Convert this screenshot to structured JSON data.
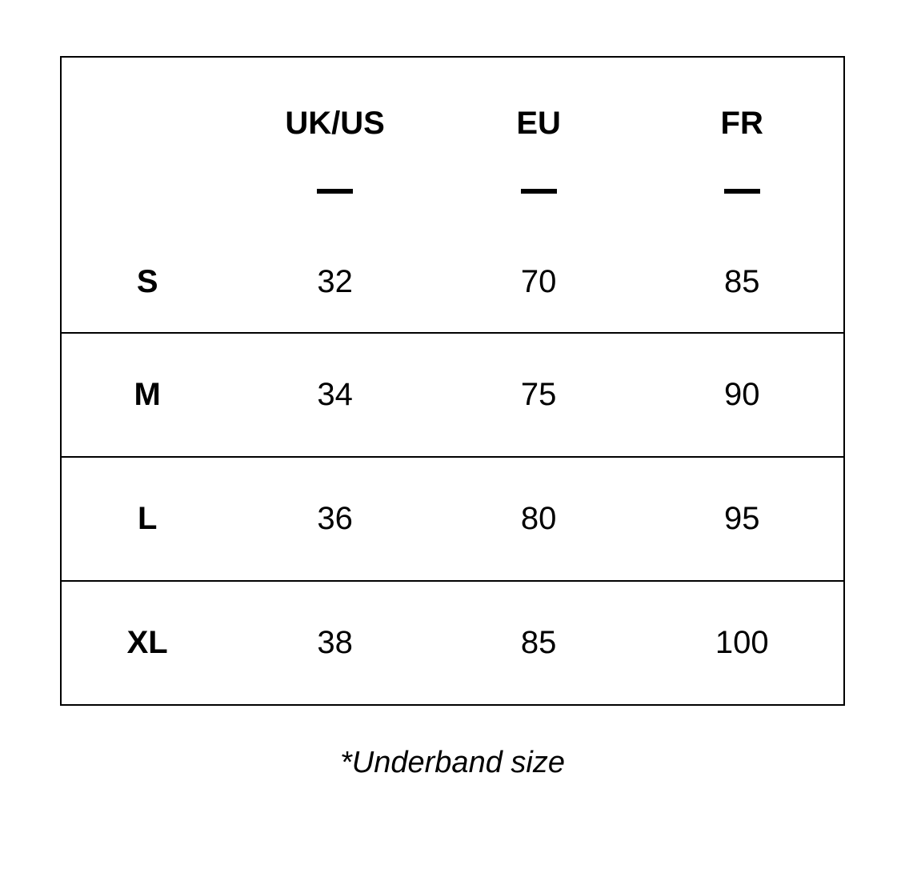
{
  "table": {
    "columns": [
      "UK/US",
      "EU",
      "FR"
    ],
    "rows": [
      {
        "size": "S",
        "ukus": "32",
        "eu": "70",
        "fr": "85"
      },
      {
        "size": "M",
        "ukus": "34",
        "eu": "75",
        "fr": "90"
      },
      {
        "size": "L",
        "ukus": "36",
        "eu": "80",
        "fr": "95"
      },
      {
        "size": "XL",
        "ukus": "38",
        "eu": "85",
        "fr": "100"
      }
    ],
    "border_color": "#000000",
    "background_color": "#ffffff",
    "text_color": "#000000",
    "header_fontsize": 40,
    "cell_fontsize": 40,
    "underline_width": 45,
    "underline_height": 6
  },
  "footnote": "*Underband size"
}
